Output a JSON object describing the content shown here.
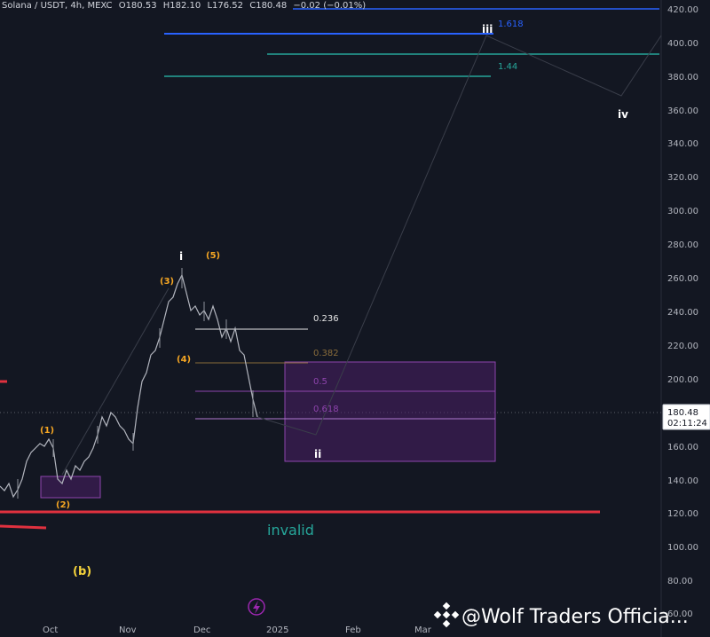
{
  "header": {
    "symbol_line": "Solana / USDT, 4h, MEXC",
    "open": "O180.53",
    "high": "H182.10",
    "low": "L176.52",
    "close": "C180.48",
    "change": "−0.02 (−0.01%)"
  },
  "price_axis": {
    "ticks": [
      "420.00",
      "400.00",
      "380.00",
      "360.00",
      "340.00",
      "320.00",
      "300.00",
      "280.00",
      "260.00",
      "240.00",
      "220.00",
      "200.00",
      "180.00",
      "160.00",
      "140.00",
      "120.00",
      "100.00",
      "80.00",
      "60.00"
    ],
    "last_price": "180.48",
    "countdown": "02:11:24"
  },
  "time_axis": {
    "ticks": [
      "Oct",
      "Nov",
      "Dec",
      "2025",
      "Feb",
      "Mar"
    ]
  },
  "fib_retracement": {
    "levels": [
      {
        "label": "0.236",
        "price": 229.5,
        "color": "#ffffff"
      },
      {
        "label": "0.382",
        "price": 209.0,
        "color": "#8a6d3b"
      },
      {
        "label": "0.5",
        "price": 192.0,
        "color": "#8e44ad"
      },
      {
        "label": "0.618",
        "price": 176.5,
        "color": "#8e44ad"
      }
    ]
  },
  "fib_extension": {
    "levels": [
      {
        "label": "1.618",
        "price": 405.0,
        "color": "#2962ff"
      },
      {
        "label": "1.44",
        "price": 380.0,
        "color": "#26a69a"
      }
    ]
  },
  "wave_labels": {
    "i": "i",
    "ii": "ii",
    "iii": "iii",
    "iv": "iv",
    "sub1": "(1)",
    "sub2": "(2)",
    "sub3": "(3)",
    "sub4": "(4)",
    "sub5": "(5)",
    "b": "(b)"
  },
  "invalid_label": "invalid",
  "watermark": "@Wolf Traders Officia...",
  "colors": {
    "background": "#131722",
    "candles": "#b2b5be",
    "invalid_line": "#e0313f",
    "accent_green": "#26a69a",
    "accent_blue": "#2962ff",
    "wave_orange": "#f5a623",
    "wave_yellow": "#f5d33b",
    "zone_purple": "#6a2c8c"
  },
  "icons": [
    "lightning-icon",
    "binance-logo-icon"
  ]
}
